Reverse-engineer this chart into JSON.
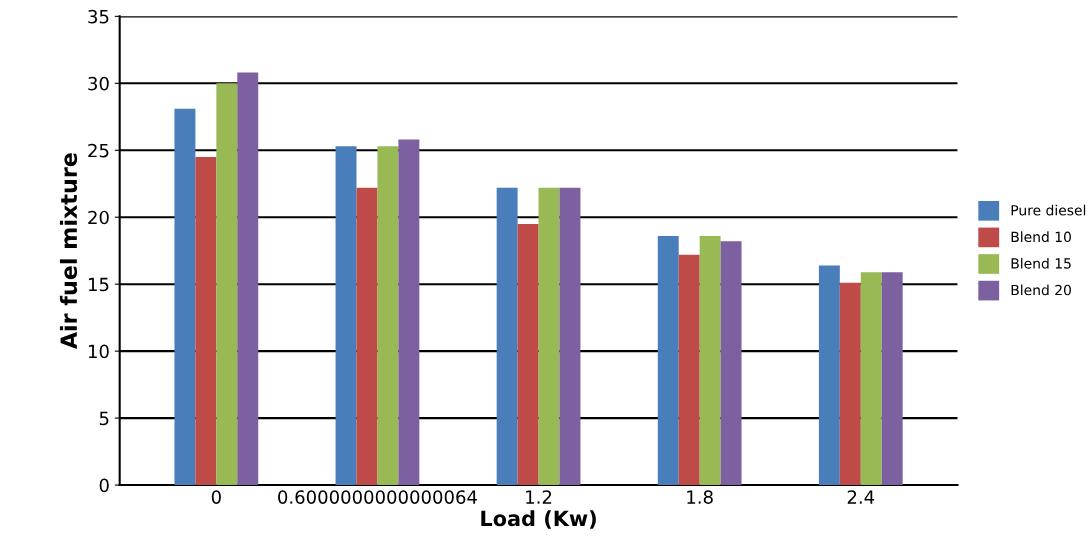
{
  "chart_data": {
    "type": "bar",
    "xlabel": "Load (Kw)",
    "ylabel": "Air fuel mixture",
    "categories": [
      "0",
      "0.6000000000000064",
      "1.2",
      "1.8",
      "2.4"
    ],
    "series": [
      {
        "name": "Pure diesel",
        "color": "#4a7ebb",
        "values": [
          28.1,
          25.3,
          22.2,
          18.6,
          16.4
        ]
      },
      {
        "name": "Blend 10",
        "color": "#be4b48",
        "values": [
          24.5,
          22.2,
          19.5,
          17.2,
          15.1
        ]
      },
      {
        "name": "Blend 15",
        "color": "#98b954",
        "values": [
          30.0,
          25.3,
          22.2,
          18.6,
          15.9
        ]
      },
      {
        "name": "Blend 20",
        "color": "#7d60a0",
        "values": [
          30.8,
          25.8,
          22.2,
          18.2,
          15.9
        ]
      }
    ],
    "ylim": [
      0,
      35
    ],
    "yticks": [
      0,
      5,
      10,
      15,
      20,
      25,
      30,
      35
    ],
    "grid": "y",
    "legend": "right"
  }
}
